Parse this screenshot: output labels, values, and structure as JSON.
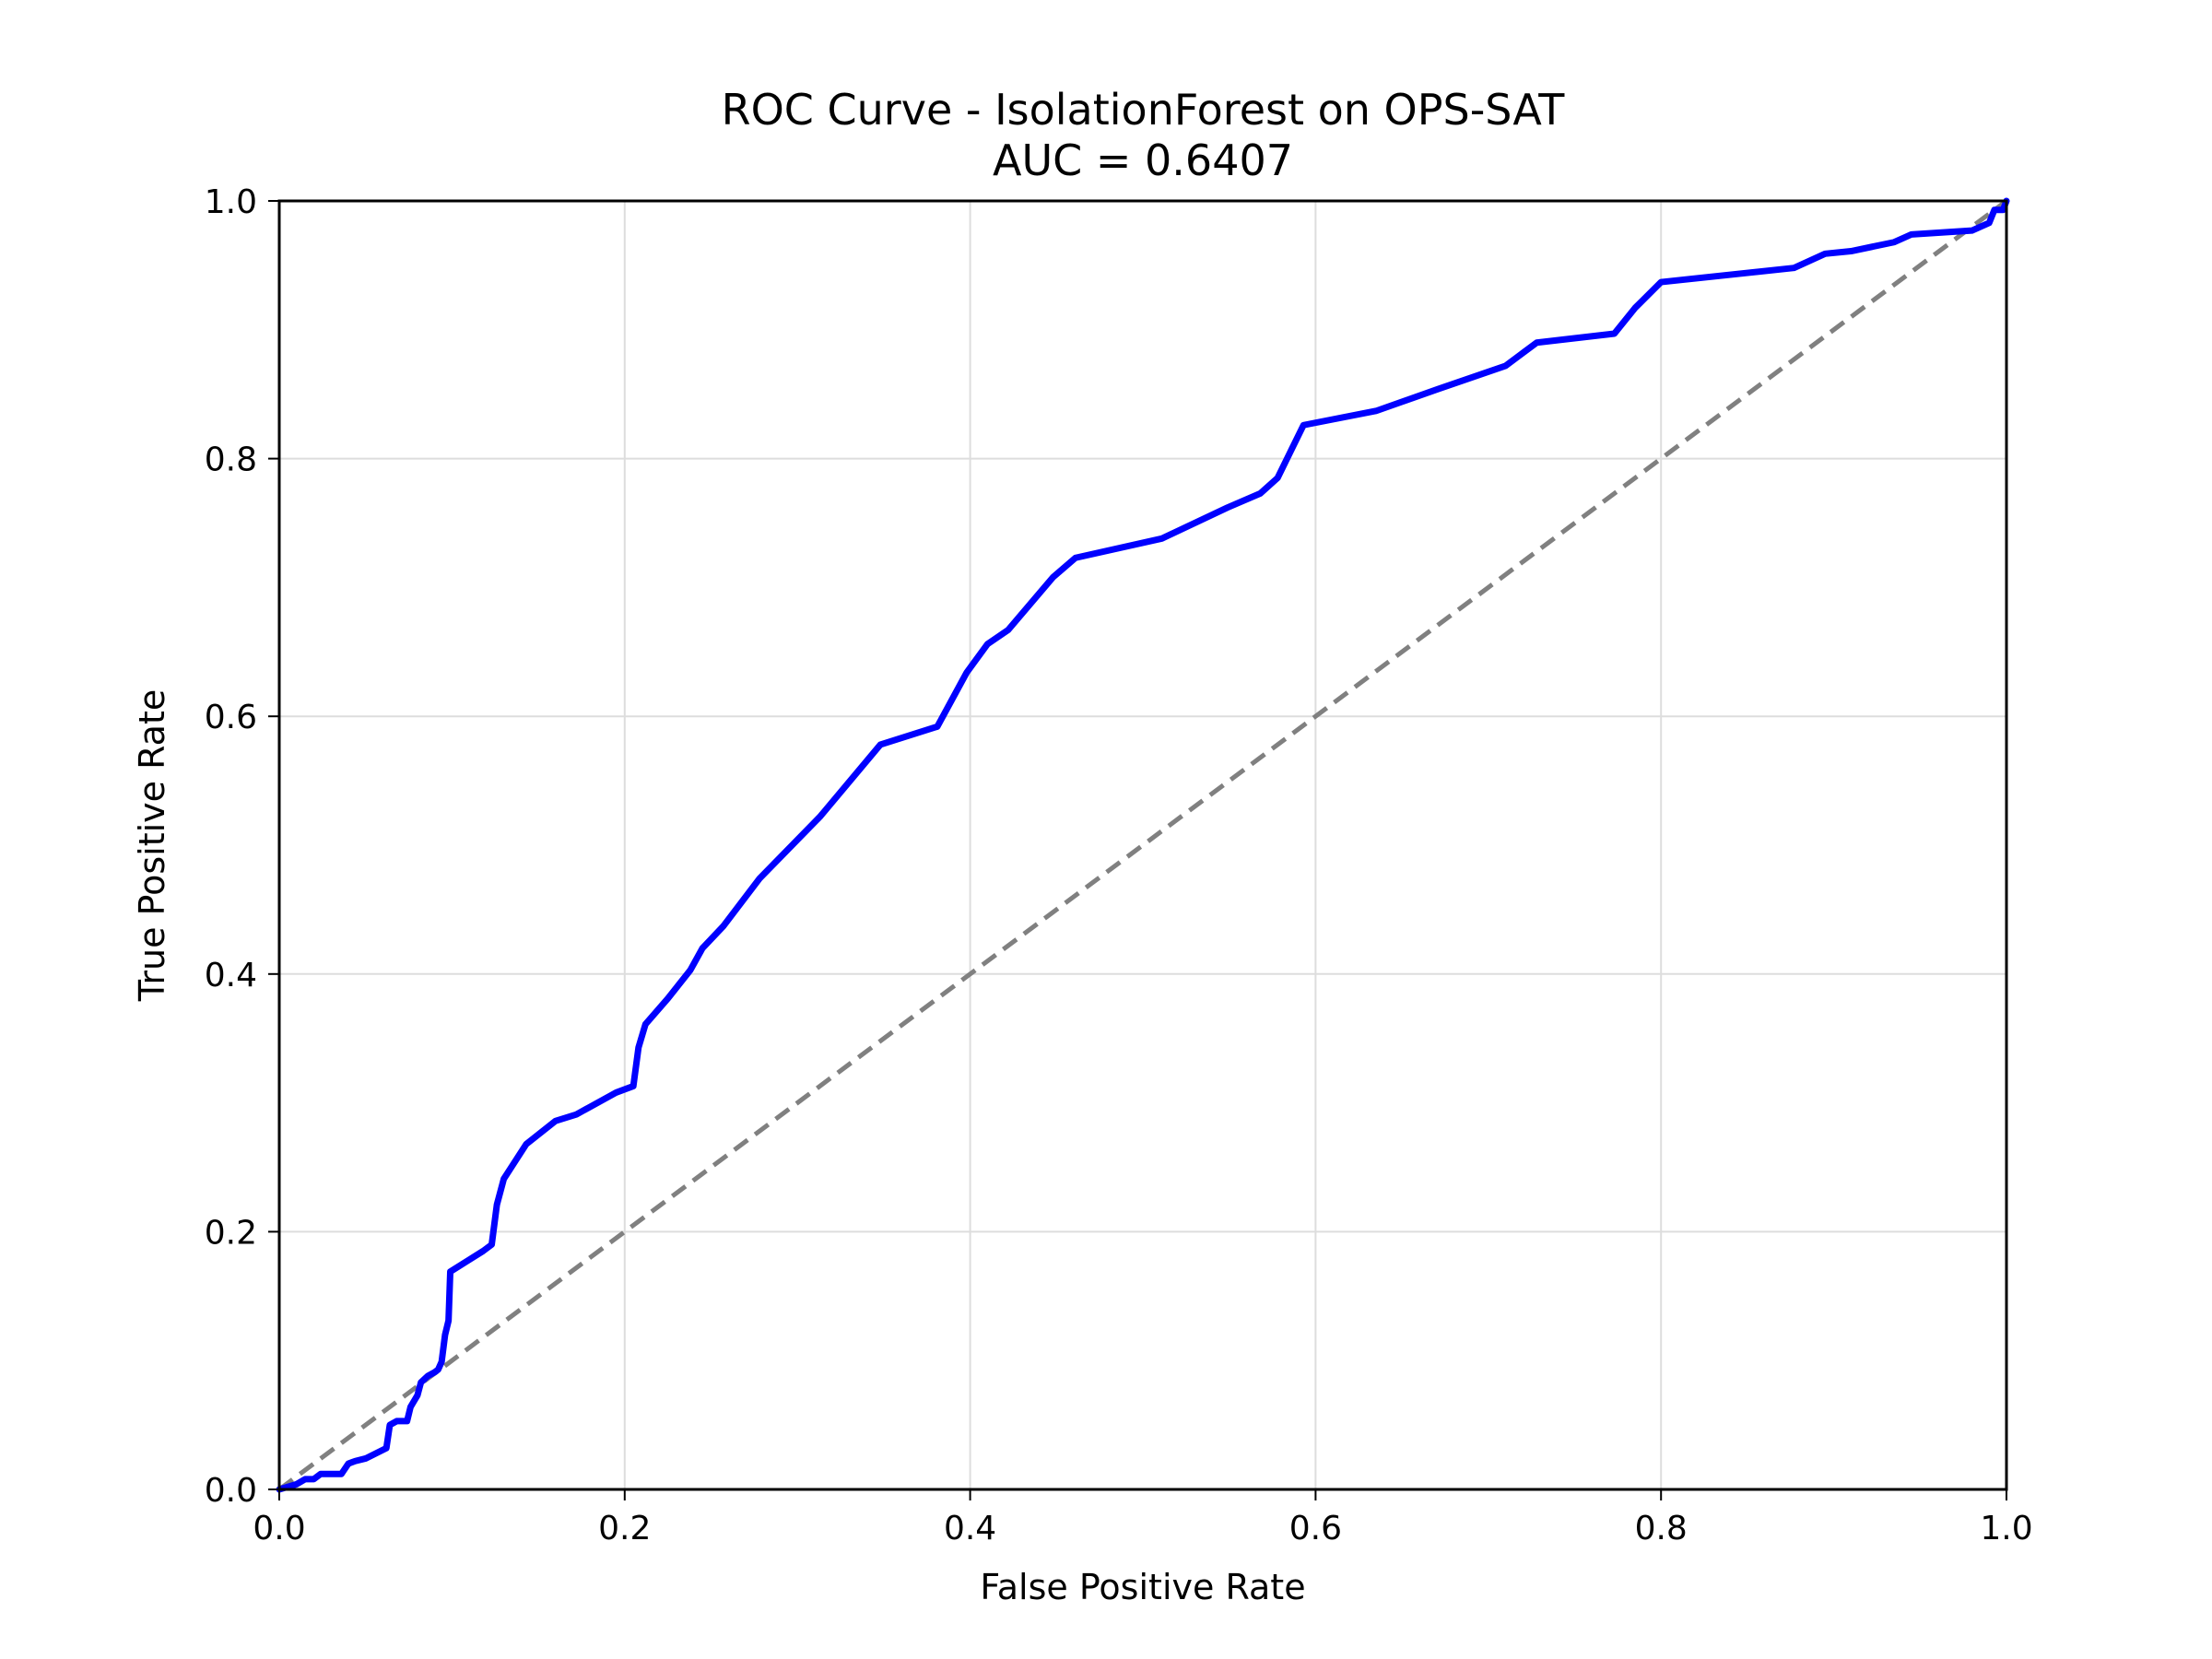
{
  "chart_data": {
    "type": "line",
    "title": "ROC Curve - IsolationForest on OPS-SAT",
    "subtitle": "AUC = 0.6407",
    "xlabel": "False Positive Rate",
    "ylabel": "True Positive Rate",
    "xlim": [
      0,
      1
    ],
    "ylim": [
      0,
      1
    ],
    "xticks": [
      "0.0",
      "0.2",
      "0.4",
      "0.6",
      "0.8",
      "1.0"
    ],
    "yticks": [
      "0.0",
      "0.2",
      "0.4",
      "0.6",
      "0.8",
      "1.0"
    ],
    "grid": true,
    "legend": "none",
    "series": [
      {
        "color": "#0000ff",
        "style": "solid",
        "points": [
          [
            0.0,
            0.0
          ],
          [
            0.01,
            0.004
          ],
          [
            0.015,
            0.008
          ],
          [
            0.02,
            0.008
          ],
          [
            0.024,
            0.012
          ],
          [
            0.036,
            0.012
          ],
          [
            0.04,
            0.02
          ],
          [
            0.044,
            0.022
          ],
          [
            0.05,
            0.024
          ],
          [
            0.056,
            0.028
          ],
          [
            0.062,
            0.032
          ],
          [
            0.064,
            0.05
          ],
          [
            0.068,
            0.053
          ],
          [
            0.074,
            0.053
          ],
          [
            0.076,
            0.064
          ],
          [
            0.08,
            0.073
          ],
          [
            0.082,
            0.083
          ],
          [
            0.086,
            0.088
          ],
          [
            0.09,
            0.091
          ],
          [
            0.092,
            0.093
          ],
          [
            0.094,
            0.099
          ],
          [
            0.096,
            0.12
          ],
          [
            0.098,
            0.131
          ],
          [
            0.099,
            0.169
          ],
          [
            0.118,
            0.185
          ],
          [
            0.123,
            0.19
          ],
          [
            0.126,
            0.221
          ],
          [
            0.13,
            0.241
          ],
          [
            0.143,
            0.268
          ],
          [
            0.16,
            0.286
          ],
          [
            0.172,
            0.291
          ],
          [
            0.195,
            0.308
          ],
          [
            0.205,
            0.313
          ],
          [
            0.208,
            0.343
          ],
          [
            0.212,
            0.361
          ],
          [
            0.225,
            0.381
          ],
          [
            0.238,
            0.403
          ],
          [
            0.245,
            0.42
          ],
          [
            0.257,
            0.437
          ],
          [
            0.278,
            0.474
          ],
          [
            0.313,
            0.522
          ],
          [
            0.348,
            0.578
          ],
          [
            0.381,
            0.592
          ],
          [
            0.398,
            0.634
          ],
          [
            0.41,
            0.656
          ],
          [
            0.422,
            0.667
          ],
          [
            0.448,
            0.708
          ],
          [
            0.461,
            0.723
          ],
          [
            0.511,
            0.738
          ],
          [
            0.549,
            0.762
          ],
          [
            0.568,
            0.773
          ],
          [
            0.578,
            0.785
          ],
          [
            0.593,
            0.826
          ],
          [
            0.635,
            0.837
          ],
          [
            0.671,
            0.854
          ],
          [
            0.71,
            0.872
          ],
          [
            0.728,
            0.89
          ],
          [
            0.773,
            0.897
          ],
          [
            0.785,
            0.917
          ],
          [
            0.8,
            0.937
          ],
          [
            0.877,
            0.948
          ],
          [
            0.895,
            0.959
          ],
          [
            0.91,
            0.961
          ],
          [
            0.935,
            0.968
          ],
          [
            0.945,
            0.974
          ],
          [
            0.98,
            0.977
          ],
          [
            0.99,
            0.983
          ],
          [
            0.993,
            0.993
          ],
          [
            0.998,
            0.993
          ],
          [
            1.0,
            1.0
          ]
        ]
      },
      {
        "color": "#808080",
        "style": "dashed",
        "points": [
          [
            0,
            0
          ],
          [
            1,
            1
          ]
        ]
      }
    ]
  }
}
